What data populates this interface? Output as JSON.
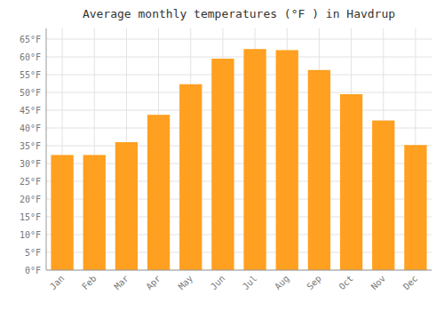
{
  "chart_data": {
    "type": "bar",
    "title": "Average monthly temperatures (°F ) in Havdrup",
    "categories": [
      "Jan",
      "Feb",
      "Mar",
      "Apr",
      "May",
      "Jun",
      "Jul",
      "Aug",
      "Sep",
      "Oct",
      "Nov",
      "Dec"
    ],
    "values": [
      32.4,
      32.4,
      36.0,
      43.7,
      52.3,
      59.5,
      62.2,
      61.9,
      56.3,
      49.5,
      42.1,
      35.2
    ],
    "color": "#FFA020",
    "ylim": [
      0,
      68
    ],
    "yticks": [
      {
        "value": 0,
        "label": "0°F"
      },
      {
        "value": 5,
        "label": "5°F"
      },
      {
        "value": 10,
        "label": "10°F"
      },
      {
        "value": 15,
        "label": "15°F"
      },
      {
        "value": 20,
        "label": "20°F"
      },
      {
        "value": 25,
        "label": "25°F"
      },
      {
        "value": 30,
        "label": "30°F"
      },
      {
        "value": 35,
        "label": "35°F"
      },
      {
        "value": 40,
        "label": "40°F"
      },
      {
        "value": 45,
        "label": "45°F"
      },
      {
        "value": 50,
        "label": "50°F"
      },
      {
        "value": 55,
        "label": "55°F"
      },
      {
        "value": 60,
        "label": "60°F"
      },
      {
        "value": 65,
        "label": "65°F"
      }
    ],
    "grid": true
  }
}
